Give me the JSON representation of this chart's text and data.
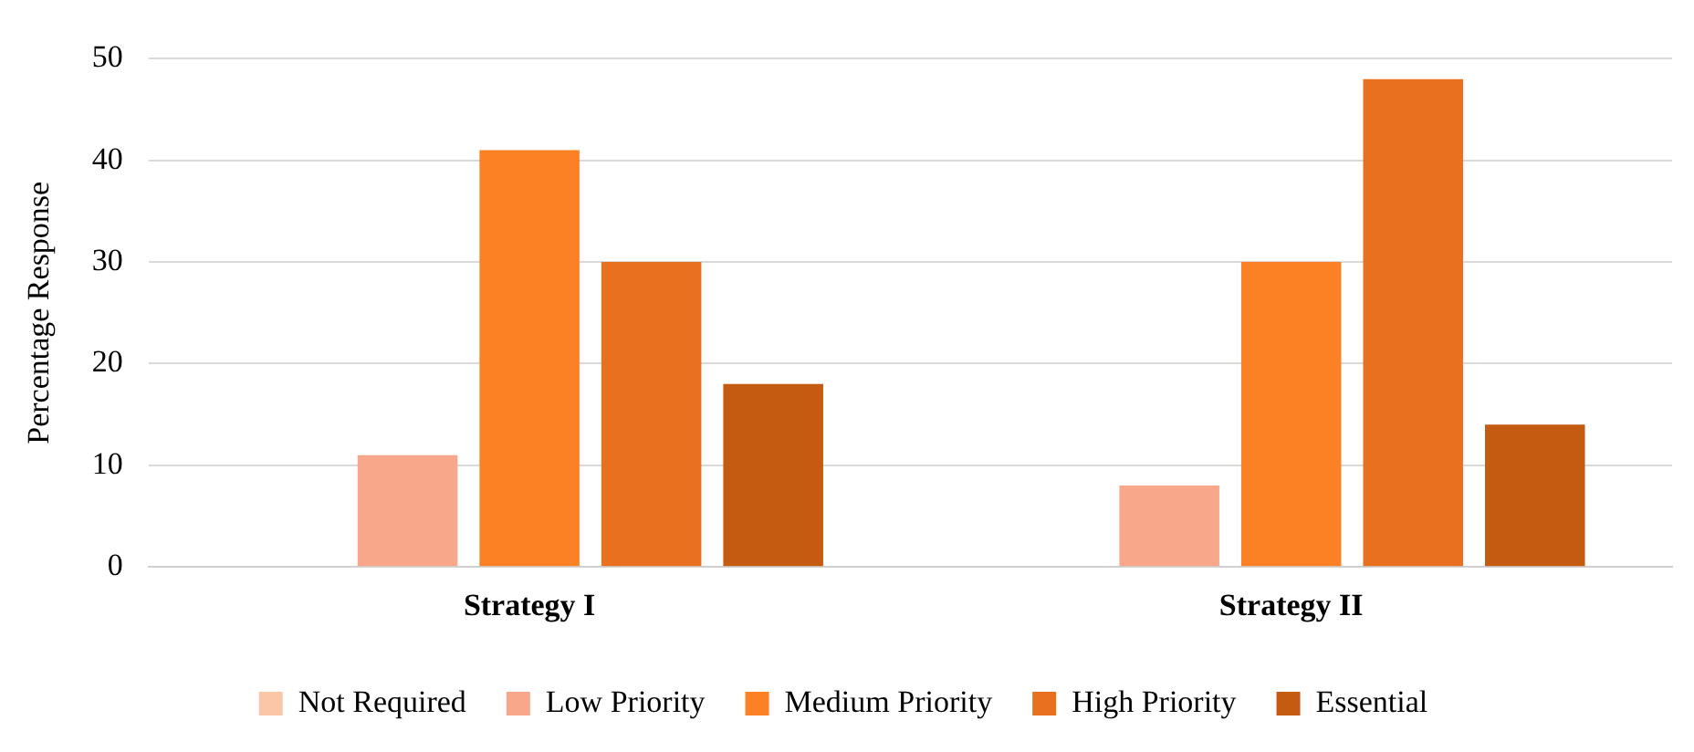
{
  "chart_data": {
    "type": "bar",
    "ylabel": "Percentage Response",
    "categories": [
      "Strategy I",
      "Strategy II"
    ],
    "series": [
      {
        "name": "Not Required",
        "color": "#fbc6a8",
        "values": [
          0,
          0
        ]
      },
      {
        "name": "Low Priority",
        "color": "#f9a78a",
        "values": [
          11,
          8
        ]
      },
      {
        "name": "Medium Priority",
        "color": "#fb8124",
        "values": [
          41,
          30
        ]
      },
      {
        "name": "High Priority",
        "color": "#e8701f",
        "values": [
          30,
          48
        ]
      },
      {
        "name": "Essential",
        "color": "#c55a11",
        "values": [
          18,
          14
        ]
      }
    ],
    "ylim": [
      0,
      50
    ],
    "yticks": [
      0,
      10,
      20,
      30,
      40,
      50
    ],
    "grid": "y",
    "legend": "bottom"
  }
}
